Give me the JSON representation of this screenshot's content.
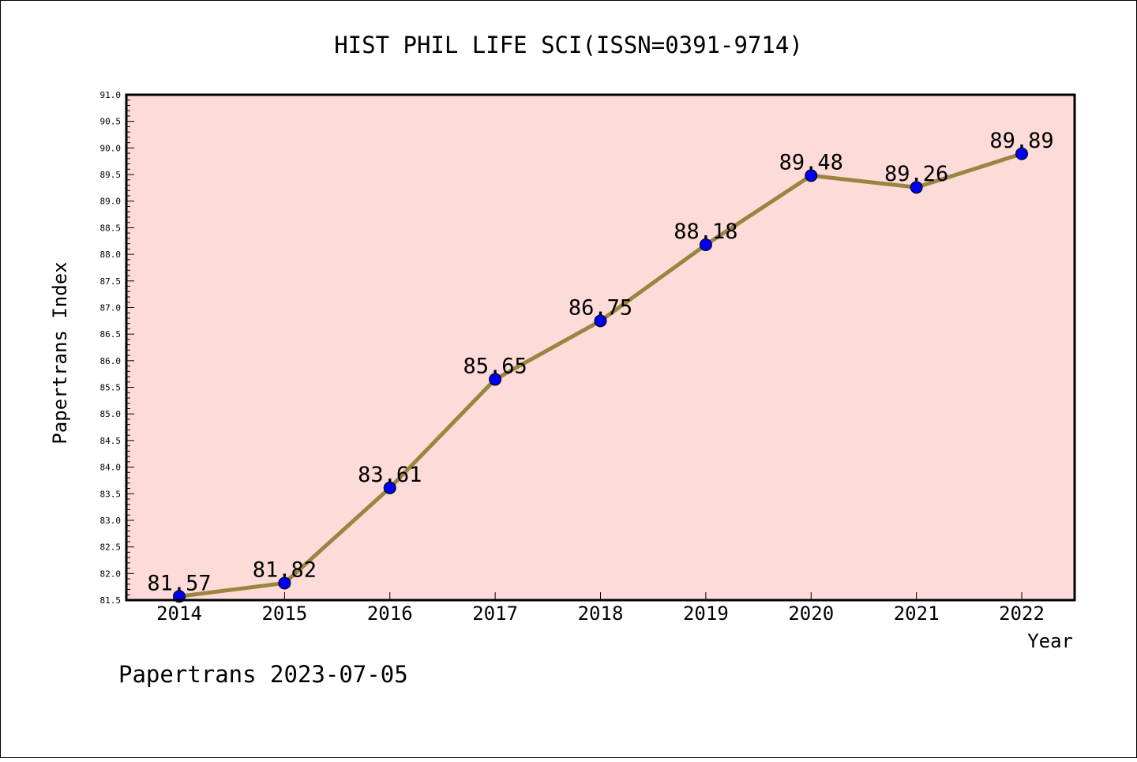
{
  "chart_data": {
    "type": "line",
    "title": "HIST PHIL LIFE SCI(ISSN=0391-9714)",
    "xlabel": "Year",
    "ylabel": "Papertrans Index",
    "footer": "Papertrans 2023-07-05",
    "x": [
      "2014",
      "2015",
      "2016",
      "2017",
      "2018",
      "2019",
      "2020",
      "2021",
      "2022"
    ],
    "series": [
      {
        "values": [
          81.57,
          81.82,
          83.61,
          85.65,
          86.75,
          88.18,
          89.48,
          89.26,
          89.89
        ],
        "labels": [
          "81.57",
          "81.82",
          "83.61",
          "85.65",
          "86.75",
          "88.18",
          "89.48",
          "89.26",
          "89.89"
        ]
      }
    ],
    "ylim": [
      81.5,
      91.0
    ],
    "yticks": [
      "81.5",
      "82.0",
      "82.5",
      "83.0",
      "83.5",
      "84.0",
      "84.5",
      "85.0",
      "85.5",
      "86.0",
      "86.5",
      "87.0",
      "87.5",
      "88.0",
      "88.5",
      "89.0",
      "89.5",
      "90.0",
      "90.5",
      "91.0"
    ],
    "grid": false,
    "legend": "none",
    "colors": {
      "plot_background": "#fddbd8",
      "line": "#9a8540",
      "marker": "#0000ee",
      "frame": "#000000"
    }
  }
}
